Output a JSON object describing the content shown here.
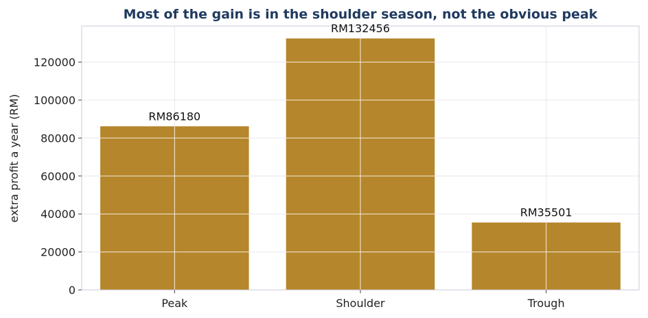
{
  "chart_data": {
    "type": "bar",
    "title": "Most of the gain is in the shoulder season, not the obvious peak",
    "xlabel": "",
    "ylabel": "extra profit a year (RM)",
    "categories": [
      "Peak",
      "Shoulder",
      "Trough"
    ],
    "values": [
      86180,
      132456,
      35501
    ],
    "data_labels": [
      "RM86180",
      "RM132456",
      "RM35501"
    ],
    "ylim": [
      0,
      139000
    ],
    "yticks": [
      0,
      20000,
      40000,
      60000,
      80000,
      100000,
      120000
    ],
    "ytick_labels": [
      "0",
      "20000",
      "40000",
      "60000",
      "80000",
      "100000",
      "120000"
    ],
    "bar_color": "#b5862b",
    "grid": true,
    "grid_color": "#e8e8ee",
    "axis_color": "#c8cad8",
    "title_color": "#1f3a5f"
  }
}
